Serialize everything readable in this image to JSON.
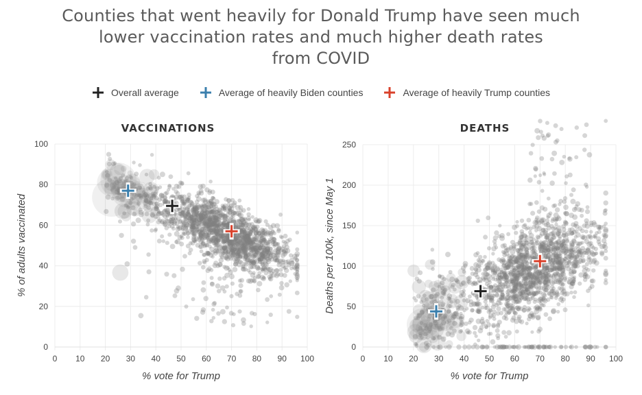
{
  "title_lines": [
    "Counties that went heavily for Donald Trump have seen much",
    "lower vaccination rates and much higher death rates",
    "from COVID"
  ],
  "legend": [
    {
      "label": "Overall average",
      "color": "#222222",
      "icon": "plus-icon"
    },
    {
      "label": "Average of heavily Biden counties",
      "color": "#3a7fad",
      "icon": "plus-icon"
    },
    {
      "label": "Average of heavily Trump counties",
      "color": "#d9412b",
      "icon": "plus-icon"
    }
  ],
  "chart_data": [
    {
      "type": "scatter",
      "title": "VACCINATIONS",
      "xlabel": "% vote for Trump",
      "ylabel": "% of adults vaccinated",
      "xlim": [
        0,
        100
      ],
      "ylim": [
        0,
        100
      ],
      "xticks": [
        0,
        10,
        20,
        30,
        40,
        50,
        60,
        70,
        80,
        90,
        100
      ],
      "yticks": [
        0,
        20,
        40,
        60,
        80,
        100
      ],
      "grid": true,
      "point_color": "#808080",
      "trend": "negative: vaccination falls from ~80% at 20% Trump vote to ~45% at 85% Trump vote",
      "averages": [
        {
          "name": "Overall average",
          "x": 46.5,
          "y": 69.5,
          "color": "#222222"
        },
        {
          "name": "Average of heavily Biden counties",
          "x": 29,
          "y": 77,
          "color": "#3a7fad"
        },
        {
          "name": "Average of heavily Trump counties",
          "x": 70,
          "y": 57,
          "color": "#d9412b"
        }
      ]
    },
    {
      "type": "scatter",
      "title": "DEATHS",
      "xlabel": "% vote for Trump",
      "ylabel": "Deaths per 100k, since May 1",
      "xlim": [
        0,
        100
      ],
      "ylim": [
        0,
        250
      ],
      "xticks": [
        0,
        10,
        20,
        30,
        40,
        50,
        60,
        70,
        80,
        90,
        100
      ],
      "yticks": [
        0,
        50,
        100,
        150,
        200,
        250
      ],
      "grid": true,
      "point_color": "#808080",
      "trend": "positive: deaths rise from ~30 per 100k at 25% Trump vote to ~110 per 100k at 80% Trump vote",
      "averages": [
        {
          "name": "Overall average",
          "x": 46.5,
          "y": 69,
          "color": "#222222"
        },
        {
          "name": "Average of heavily Biden counties",
          "x": 29,
          "y": 44,
          "color": "#3a7fad"
        },
        {
          "name": "Average of heavily Trump counties",
          "x": 70,
          "y": 106,
          "color": "#d9412b"
        }
      ]
    }
  ]
}
